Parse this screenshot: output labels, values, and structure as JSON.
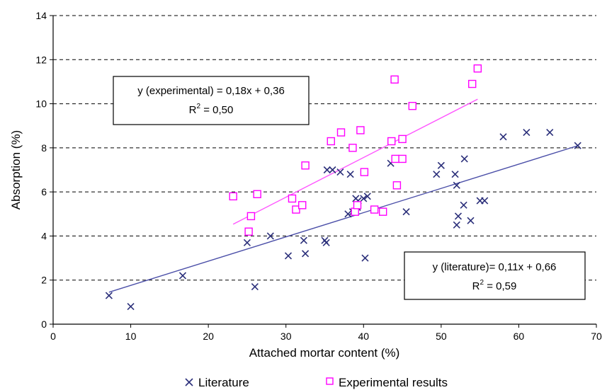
{
  "chart_data": {
    "type": "scatter",
    "xlabel": "Attached mortar content (%)",
    "ylabel": "Absorption (%)",
    "xlim": [
      0,
      70
    ],
    "ylim": [
      0,
      14
    ],
    "x_ticks": [
      "0",
      "10",
      "20",
      "30",
      "40",
      "50",
      "60",
      "70"
    ],
    "y_ticks": [
      "0",
      "2",
      "4",
      "6",
      "8",
      "10",
      "12",
      "14"
    ],
    "grid": "horizontal dashed",
    "legend_position": "bottom",
    "series": [
      {
        "name": "Literature",
        "marker": "x",
        "color": "#2b2f7a",
        "points": [
          [
            7.2,
            1.3
          ],
          [
            10,
            0.8
          ],
          [
            16.7,
            2.2
          ],
          [
            25,
            3.7
          ],
          [
            26,
            1.7
          ],
          [
            28,
            4.0
          ],
          [
            30.3,
            3.1
          ],
          [
            32.3,
            3.8
          ],
          [
            32.5,
            3.2
          ],
          [
            35,
            3.8
          ],
          [
            35.2,
            3.7
          ],
          [
            35.3,
            7.0
          ],
          [
            36,
            7.0
          ],
          [
            37,
            6.9
          ],
          [
            38,
            5.0
          ],
          [
            38.3,
            6.8
          ],
          [
            38.6,
            5.1
          ],
          [
            39,
            5.7
          ],
          [
            39.3,
            5.6
          ],
          [
            39.2,
            5.3
          ],
          [
            40,
            5.7
          ],
          [
            40.2,
            3.0
          ],
          [
            40.5,
            5.8
          ],
          [
            43.5,
            7.3
          ],
          [
            45.5,
            5.1
          ],
          [
            49.4,
            6.8
          ],
          [
            50,
            7.2
          ],
          [
            51.8,
            6.8
          ],
          [
            52,
            6.3
          ],
          [
            52,
            4.5
          ],
          [
            52.2,
            4.9
          ],
          [
            52.9,
            5.4
          ],
          [
            53,
            7.5
          ],
          [
            53.8,
            4.7
          ],
          [
            55,
            5.6
          ],
          [
            55.6,
            5.6
          ],
          [
            58,
            8.5
          ],
          [
            61,
            8.7
          ],
          [
            64,
            8.7
          ],
          [
            67.6,
            8.1
          ]
        ]
      },
      {
        "name": "Experimental results",
        "marker": "square",
        "color": "#ff00ff",
        "points": [
          [
            23.2,
            5.8
          ],
          [
            25.2,
            4.2
          ],
          [
            25.5,
            4.9
          ],
          [
            26.3,
            5.9
          ],
          [
            30.8,
            5.7
          ],
          [
            31.3,
            5.2
          ],
          [
            32.1,
            5.4
          ],
          [
            32.5,
            7.2
          ],
          [
            35.8,
            8.3
          ],
          [
            37.1,
            8.7
          ],
          [
            38.6,
            8.0
          ],
          [
            38.9,
            5.1
          ],
          [
            39.2,
            5.4
          ],
          [
            39.6,
            8.8
          ],
          [
            40.1,
            6.9
          ],
          [
            41.4,
            5.2
          ],
          [
            42.5,
            5.1
          ],
          [
            43.6,
            8.3
          ],
          [
            44,
            11.1
          ],
          [
            44.1,
            7.5
          ],
          [
            44.3,
            6.3
          ],
          [
            45,
            7.5
          ],
          [
            45,
            8.4
          ],
          [
            46.3,
            9.9
          ],
          [
            54,
            10.9
          ],
          [
            54.7,
            11.6
          ]
        ]
      }
    ],
    "trendlines": [
      {
        "series": "Literature",
        "color": "#4b4fa8",
        "slope": 0.11,
        "intercept": 0.66,
        "x_range": [
          7.2,
          67.6
        ],
        "label_line1": "y (literature)= 0,11x + 0,66",
        "label_line2_base": "R",
        "label_line2_sup": "2",
        "label_line2_rest": " = 0,59"
      },
      {
        "series": "Experimental results",
        "color": "#ff55ff",
        "slope": 0.18,
        "intercept": 0.36,
        "x_range": [
          23.2,
          54.7
        ],
        "label_line1": "y (experimental) = 0,18x + 0,36",
        "label_line2_base": "R",
        "label_line2_sup": "2",
        "label_line2_rest": " = 0,50"
      }
    ]
  }
}
